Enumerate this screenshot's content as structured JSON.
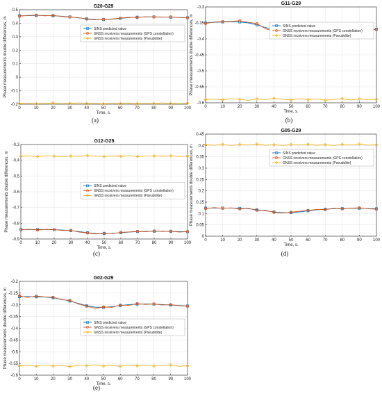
{
  "colors": {
    "sins": "#0072BD",
    "gps": "#D95319",
    "pseudolite": "#EDB120"
  },
  "legend_labels": [
    "SINS predicted value",
    "GNSS receivers measurements (GPS constellation)",
    "GNSS receivers measurements (Pseudolite)"
  ],
  "chart_data": [
    {
      "type": "line",
      "caption": "(a)",
      "title": "G20-G29",
      "xlabel": "Time, s.",
      "ylabel": "Phase measurements double differences, m",
      "xlim": [
        0,
        100
      ],
      "ylim": [
        -0.2,
        0.5
      ],
      "xticks": [
        0,
        10,
        20,
        30,
        40,
        50,
        60,
        70,
        80,
        90,
        100
      ],
      "xtick_labels": [
        "0",
        "10",
        "20",
        "30",
        "40",
        "50",
        "60",
        "70",
        "80",
        "90",
        "100"
      ],
      "yticks": [
        -0.2,
        -0.1,
        0,
        0.1,
        0.2,
        0.3,
        0.4,
        0.5
      ],
      "ytick_labels": [
        "-0.2",
        "-0.1",
        "0",
        "0.1",
        "0.2",
        "0.3",
        "0.4",
        "0.5"
      ],
      "grid": true,
      "legend_position": "upper-right",
      "series": [
        {
          "name": "SINS predicted value",
          "x": [
            0,
            5,
            10,
            15,
            20,
            25,
            30,
            35,
            40,
            45,
            50,
            55,
            60,
            65,
            70,
            75,
            80,
            85,
            90,
            95,
            100
          ],
          "y": [
            0.455,
            0.456,
            0.457,
            0.457,
            0.455,
            0.452,
            0.447,
            0.44,
            0.433,
            0.428,
            0.427,
            0.43,
            0.436,
            0.441,
            0.445,
            0.447,
            0.447,
            0.446,
            0.445,
            0.443,
            0.441
          ]
        },
        {
          "name": "GNSS receivers measurements (GPS constellation)",
          "x": [
            0,
            5,
            10,
            15,
            20,
            25,
            30,
            35,
            40,
            45,
            50,
            55,
            60,
            65,
            70,
            75,
            80,
            85,
            90,
            95,
            100
          ],
          "y": [
            0.452,
            0.458,
            0.46,
            0.455,
            0.458,
            0.45,
            0.446,
            0.442,
            0.43,
            0.425,
            0.428,
            0.432,
            0.438,
            0.444,
            0.442,
            0.448,
            0.446,
            0.445,
            0.447,
            0.442,
            0.44
          ]
        },
        {
          "name": "GNSS receivers measurements (Pseudolite)",
          "x": [
            0,
            5,
            10,
            15,
            20,
            25,
            30,
            35,
            40,
            45,
            50,
            55,
            60,
            65,
            70,
            75,
            80,
            85,
            90,
            95,
            100
          ],
          "y": [
            -0.195,
            -0.192,
            -0.197,
            -0.193,
            -0.191,
            -0.196,
            -0.194,
            -0.19,
            -0.195,
            -0.193,
            -0.197,
            -0.192,
            -0.194,
            -0.191,
            -0.196,
            -0.193,
            -0.195,
            -0.19,
            -0.194,
            -0.196,
            -0.193
          ]
        }
      ]
    },
    {
      "type": "line",
      "caption": "(b)",
      "title": "G11-G29",
      "xlabel": "Time, s.",
      "ylabel": "Phase measurements double differences, m",
      "xlim": [
        0,
        100
      ],
      "ylim": [
        -0.6,
        -0.3
      ],
      "xticks": [
        0,
        10,
        20,
        30,
        40,
        50,
        60,
        70,
        80,
        90,
        100
      ],
      "xtick_labels": [
        "0",
        "10",
        "20",
        "30",
        "40",
        "50",
        "60",
        "70",
        "80",
        "90",
        "100"
      ],
      "yticks": [
        -0.6,
        -0.55,
        -0.5,
        -0.45,
        -0.4,
        -0.35,
        -0.3
      ],
      "ytick_labels": [
        "-0.6",
        "-0.55",
        "-0.5",
        "-0.45",
        "-0.4",
        "-0.35",
        "-0.3"
      ],
      "grid": true,
      "legend_position": "upper-right",
      "series": [
        {
          "name": "SINS predicted value",
          "x": [
            0,
            5,
            10,
            15,
            20,
            25,
            30,
            35,
            40,
            45,
            50,
            55,
            60,
            65,
            70,
            75,
            80,
            85,
            90,
            95,
            100
          ],
          "y": [
            -0.35,
            -0.348,
            -0.347,
            -0.346,
            -0.347,
            -0.35,
            -0.356,
            -0.364,
            -0.372,
            -0.377,
            -0.378,
            -0.375,
            -0.371,
            -0.367,
            -0.364,
            -0.363,
            -0.363,
            -0.364,
            -0.366,
            -0.368,
            -0.37
          ]
        },
        {
          "name": "GNSS receivers measurements (GPS constellation)",
          "x": [
            0,
            5,
            10,
            15,
            20,
            25,
            30,
            35,
            40,
            45,
            50,
            55,
            60,
            65,
            70,
            75,
            80,
            85,
            90,
            95,
            100
          ],
          "y": [
            -0.352,
            -0.347,
            -0.346,
            -0.345,
            -0.343,
            -0.348,
            -0.352,
            -0.368,
            -0.376,
            -0.374,
            -0.381,
            -0.373,
            -0.369,
            -0.364,
            -0.366,
            -0.361,
            -0.364,
            -0.366,
            -0.362,
            -0.369,
            -0.371
          ]
        },
        {
          "name": "GNSS receivers measurements (Pseudolite)",
          "x": [
            0,
            5,
            10,
            15,
            20,
            25,
            30,
            35,
            40,
            45,
            50,
            55,
            60,
            65,
            70,
            75,
            80,
            85,
            90,
            95,
            100
          ],
          "y": [
            -0.59,
            -0.588,
            -0.591,
            -0.587,
            -0.589,
            -0.592,
            -0.588,
            -0.59,
            -0.586,
            -0.589,
            -0.591,
            -0.587,
            -0.59,
            -0.588,
            -0.592,
            -0.589,
            -0.587,
            -0.591,
            -0.588,
            -0.59,
            -0.589
          ]
        }
      ]
    },
    {
      "type": "line",
      "caption": "(c)",
      "title": "G12-G29",
      "xlabel": "Time, s.",
      "ylabel": "Phase measurements double differences, m",
      "xlim": [
        0,
        100
      ],
      "ylim": [
        -0.9,
        -0.3
      ],
      "xticks": [
        0,
        10,
        20,
        30,
        40,
        50,
        60,
        70,
        80,
        90,
        100
      ],
      "xtick_labels": [
        "0",
        "10",
        "20",
        "30",
        "40",
        "50",
        "60",
        "70",
        "80",
        "90",
        "100"
      ],
      "yticks": [
        -0.9,
        -0.8,
        -0.7,
        -0.6,
        -0.5,
        -0.4,
        -0.3
      ],
      "ytick_labels": [
        "-0.9",
        "-0.8",
        "-0.7",
        "-0.6",
        "-0.5",
        "-0.4",
        "-0.3"
      ],
      "grid": true,
      "legend_position": "right",
      "series": [
        {
          "name": "SINS predicted value",
          "x": [
            0,
            5,
            10,
            15,
            20,
            25,
            30,
            35,
            40,
            45,
            50,
            55,
            60,
            65,
            70,
            75,
            80,
            85,
            90,
            95,
            100
          ],
          "y": [
            -0.84,
            -0.84,
            -0.84,
            -0.84,
            -0.841,
            -0.843,
            -0.847,
            -0.853,
            -0.86,
            -0.865,
            -0.866,
            -0.864,
            -0.86,
            -0.856,
            -0.853,
            -0.852,
            -0.851,
            -0.851,
            -0.852,
            -0.853,
            -0.854
          ]
        },
        {
          "name": "GNSS receivers measurements (GPS constellation)",
          "x": [
            0,
            5,
            10,
            15,
            20,
            25,
            30,
            35,
            40,
            45,
            50,
            55,
            60,
            65,
            70,
            75,
            80,
            85,
            90,
            95,
            100
          ],
          "y": [
            -0.842,
            -0.838,
            -0.843,
            -0.839,
            -0.84,
            -0.846,
            -0.845,
            -0.856,
            -0.862,
            -0.868,
            -0.863,
            -0.866,
            -0.858,
            -0.855,
            -0.851,
            -0.854,
            -0.849,
            -0.853,
            -0.85,
            -0.856,
            -0.853
          ]
        },
        {
          "name": "GNSS receivers measurements (Pseudolite)",
          "x": [
            0,
            5,
            10,
            15,
            20,
            25,
            30,
            35,
            40,
            45,
            50,
            55,
            60,
            65,
            70,
            75,
            80,
            85,
            90,
            95,
            100
          ],
          "y": [
            -0.375,
            -0.373,
            -0.376,
            -0.372,
            -0.374,
            -0.377,
            -0.373,
            -0.375,
            -0.371,
            -0.374,
            -0.376,
            -0.373,
            -0.375,
            -0.372,
            -0.376,
            -0.374,
            -0.373,
            -0.375,
            -0.372,
            -0.376,
            -0.374
          ]
        }
      ]
    },
    {
      "type": "line",
      "caption": "(d)",
      "title": "G05-G29",
      "xlabel": "Time, s.",
      "ylabel": "Phase measurements double differences, m",
      "xlim": [
        0,
        100
      ],
      "ylim": [
        0,
        0.45
      ],
      "xticks": [
        0,
        10,
        20,
        30,
        40,
        50,
        60,
        70,
        80,
        90,
        100
      ],
      "xtick_labels": [
        "0",
        "10",
        "20",
        "30",
        "40",
        "50",
        "60",
        "70",
        "80",
        "90",
        "100"
      ],
      "yticks": [
        0,
        0.05,
        0.1,
        0.15,
        0.2,
        0.25,
        0.3,
        0.35,
        0.4,
        0.45
      ],
      "ytick_labels": [
        "0",
        "0.05",
        "0.1",
        "0.15",
        "0.2",
        "0.25",
        "0.3",
        "0.35",
        "0.4",
        "0.45"
      ],
      "grid": true,
      "legend_position": "upper-right",
      "series": [
        {
          "name": "SINS predicted value",
          "x": [
            0,
            5,
            10,
            15,
            20,
            25,
            30,
            35,
            40,
            45,
            50,
            55,
            60,
            65,
            70,
            75,
            80,
            85,
            90,
            95,
            100
          ],
          "y": [
            0.124,
            0.124,
            0.124,
            0.124,
            0.123,
            0.121,
            0.117,
            0.112,
            0.107,
            0.104,
            0.104,
            0.107,
            0.112,
            0.116,
            0.119,
            0.121,
            0.122,
            0.123,
            0.123,
            0.122,
            0.121
          ]
        },
        {
          "name": "GNSS receivers measurements (GPS constellation)",
          "x": [
            0,
            5,
            10,
            15,
            20,
            25,
            30,
            35,
            40,
            45,
            50,
            55,
            60,
            65,
            70,
            75,
            80,
            85,
            90,
            95,
            100
          ],
          "y": [
            0.122,
            0.126,
            0.123,
            0.125,
            0.12,
            0.123,
            0.114,
            0.114,
            0.105,
            0.102,
            0.106,
            0.11,
            0.114,
            0.118,
            0.117,
            0.123,
            0.12,
            0.124,
            0.125,
            0.121,
            0.119
          ]
        },
        {
          "name": "GNSS receivers measurements (Pseudolite)",
          "x": [
            0,
            5,
            10,
            15,
            20,
            25,
            30,
            35,
            40,
            45,
            50,
            55,
            60,
            65,
            70,
            75,
            80,
            85,
            90,
            95,
            100
          ],
          "y": [
            0.403,
            0.401,
            0.405,
            0.4,
            0.404,
            0.402,
            0.406,
            0.401,
            0.403,
            0.4,
            0.404,
            0.402,
            0.405,
            0.401,
            0.403,
            0.4,
            0.404,
            0.402,
            0.406,
            0.401,
            0.403
          ]
        }
      ]
    },
    {
      "type": "line",
      "caption": "(e)",
      "title": "G02-G29",
      "xlabel": "Time, s.",
      "ylabel": "Phase measurements double differences, m",
      "xlim": [
        0,
        100
      ],
      "ylim": [
        -0.6,
        -0.2
      ],
      "xticks": [
        0,
        10,
        20,
        30,
        40,
        50,
        60,
        70,
        80,
        90,
        100
      ],
      "xtick_labels": [
        "0",
        "10",
        "20",
        "30",
        "40",
        "50",
        "60",
        "70",
        "80",
        "90",
        "100"
      ],
      "yticks": [
        -0.6,
        -0.55,
        -0.5,
        -0.45,
        -0.4,
        -0.35,
        -0.3,
        -0.25,
        -0.2
      ],
      "ytick_labels": [
        "-0.6",
        "-0.55",
        "-0.5",
        "-0.45",
        "-0.4",
        "-0.35",
        "-0.3",
        "-0.25",
        "-0.2"
      ],
      "grid": true,
      "legend_position": "right",
      "series": [
        {
          "name": "SINS predicted value",
          "x": [
            0,
            5,
            10,
            15,
            20,
            25,
            30,
            35,
            40,
            45,
            50,
            55,
            60,
            65,
            70,
            75,
            80,
            85,
            90,
            95,
            100
          ],
          "y": [
            -0.265,
            -0.265,
            -0.266,
            -0.267,
            -0.27,
            -0.276,
            -0.284,
            -0.294,
            -0.304,
            -0.31,
            -0.311,
            -0.308,
            -0.303,
            -0.299,
            -0.297,
            -0.296,
            -0.297,
            -0.299,
            -0.301,
            -0.303,
            -0.305
          ]
        },
        {
          "name": "GNSS receivers measurements (GPS constellation)",
          "x": [
            0,
            5,
            10,
            15,
            20,
            25,
            30,
            35,
            40,
            45,
            50,
            55,
            60,
            65,
            70,
            75,
            80,
            85,
            90,
            95,
            100
          ],
          "y": [
            -0.262,
            -0.268,
            -0.263,
            -0.266,
            -0.268,
            -0.278,
            -0.281,
            -0.296,
            -0.306,
            -0.315,
            -0.309,
            -0.311,
            -0.301,
            -0.302,
            -0.295,
            -0.298,
            -0.296,
            -0.301,
            -0.299,
            -0.304,
            -0.306
          ]
        },
        {
          "name": "GNSS receivers measurements (Pseudolite)",
          "x": [
            0,
            5,
            10,
            15,
            20,
            25,
            30,
            35,
            40,
            45,
            50,
            55,
            60,
            65,
            70,
            75,
            80,
            85,
            90,
            95,
            100
          ],
          "y": [
            -0.56,
            -0.558,
            -0.562,
            -0.557,
            -0.561,
            -0.559,
            -0.563,
            -0.558,
            -0.56,
            -0.556,
            -0.561,
            -0.559,
            -0.562,
            -0.557,
            -0.56,
            -0.558,
            -0.561,
            -0.559,
            -0.557,
            -0.562,
            -0.56
          ]
        }
      ]
    }
  ]
}
